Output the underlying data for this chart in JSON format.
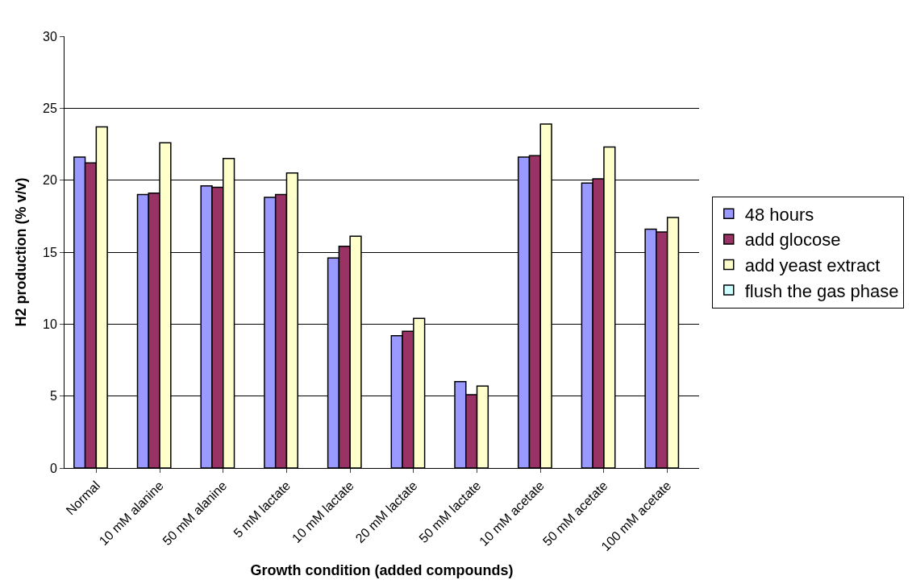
{
  "chart_data": {
    "type": "bar",
    "xlabel": "Growth condition (added compounds)",
    "ylabel": "H2 production (% v/v)",
    "categories": [
      "Normal",
      "10 mM alanine",
      "50 mM alanine",
      "5 mM lactate",
      "10 mM lactate",
      "20 mM lactate",
      "50 mM lactate",
      "10 mM acetate",
      "50 mM acetate",
      "100 mM acetate"
    ],
    "series": [
      {
        "name": "48 hours",
        "color": "#9999ff",
        "values": [
          21.6,
          19.0,
          19.6,
          18.8,
          14.6,
          9.2,
          6.0,
          21.6,
          19.8,
          16.6
        ]
      },
      {
        "name": "add glocose",
        "color": "#993366",
        "values": [
          21.2,
          19.1,
          19.5,
          19.0,
          15.4,
          9.5,
          5.1,
          21.7,
          20.1,
          16.4
        ]
      },
      {
        "name": "add yeast extract",
        "color": "#ffffcc",
        "values": [
          23.7,
          22.6,
          21.5,
          20.5,
          16.1,
          10.4,
          5.7,
          23.9,
          22.3,
          17.4
        ]
      },
      {
        "name": "flush the gas phase",
        "color": "#ccffff",
        "values": [
          null,
          null,
          null,
          null,
          null,
          null,
          null,
          null,
          null,
          null
        ]
      }
    ],
    "ylim": [
      0,
      30
    ],
    "yticks": [
      0,
      5,
      10,
      15,
      20,
      25,
      30
    ],
    "grid": "y",
    "legend": "right"
  }
}
